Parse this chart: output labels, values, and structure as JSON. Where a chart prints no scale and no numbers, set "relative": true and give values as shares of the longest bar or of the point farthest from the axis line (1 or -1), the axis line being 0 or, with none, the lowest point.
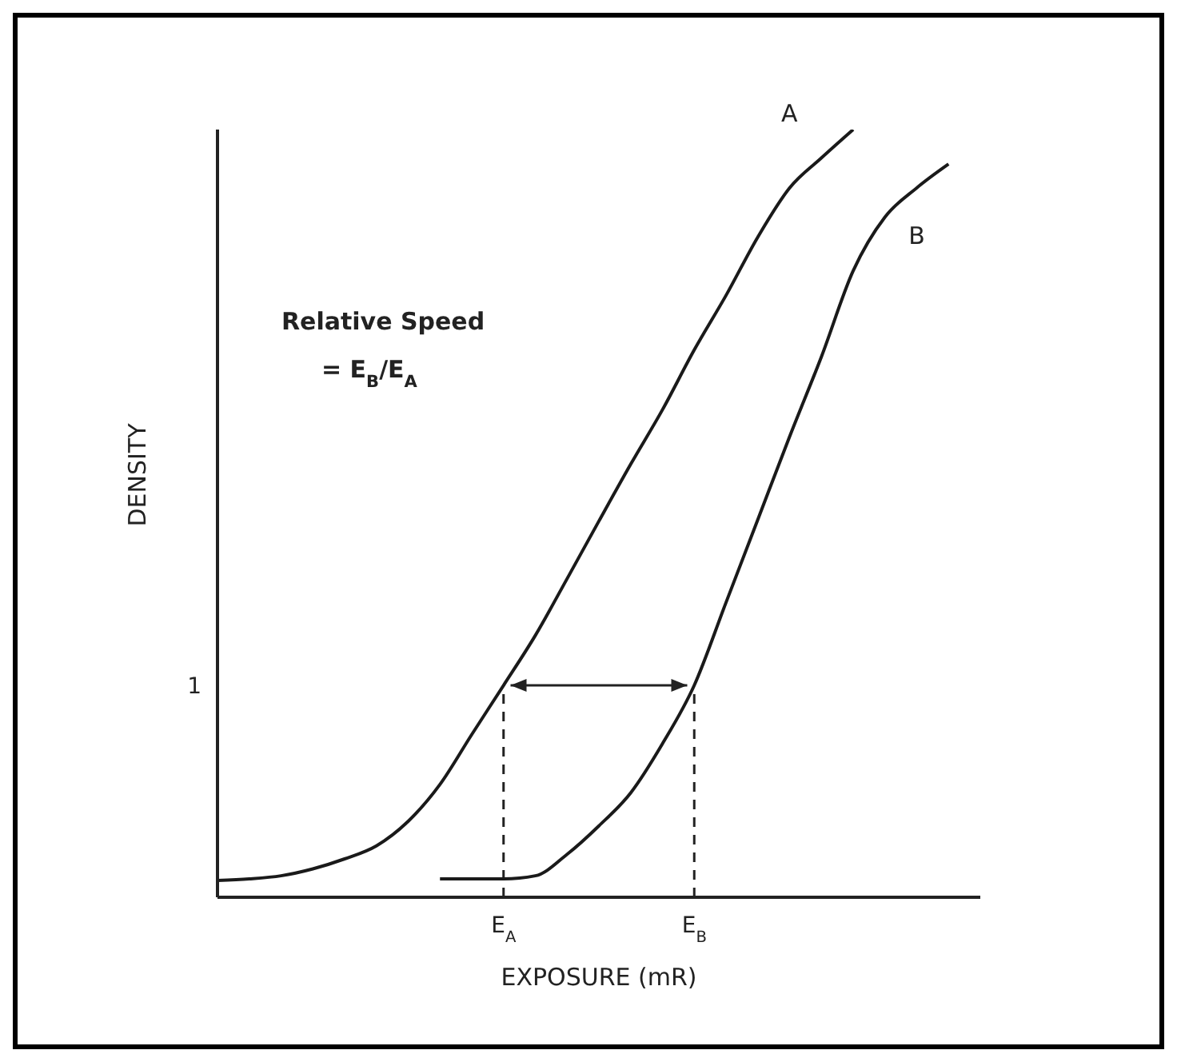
{
  "chart_data": {
    "type": "line",
    "relative": true,
    "xlabel": "EXPOSURE (mR)",
    "ylabel": "DENSITY",
    "categories": [
      null,
      null,
      null,
      null,
      null,
      null,
      null,
      null,
      null,
      "E$_{A}$",
      null,
      null,
      null,
      null,
      null,
      "E$_{B}$",
      null,
      null,
      null,
      null,
      null,
      null,
      null,
      null,
      null
    ],
    "series": [
      {
        "name": "A",
        "color": "#1a1a1a",
        "values": [
          0.022,
          0.024,
          0.028,
          0.037,
          0.05,
          0.067,
          0.099,
          0.147,
          0.212,
          0.276,
          0.341,
          0.415,
          0.49,
          0.564,
          0.635,
          0.713,
          0.784,
          0.86,
          0.924,
          0.963,
          1,
          null,
          null,
          null,
          null
        ]
      },
      {
        "name": "B",
        "color": "#1a1a1a",
        "values": [
          null,
          null,
          null,
          null,
          null,
          null,
          null,
          0.024,
          0.024,
          0.024,
          0.028,
          0.056,
          0.093,
          0.136,
          0.2,
          0.276,
          0.384,
          0.492,
          0.6,
          0.704,
          0.816,
          0.886,
          0.924,
          0.955,
          null
        ]
      }
    ],
    "ref_lines": [
      {
        "axis": "x",
        "value": "E$_{A}$",
        "line_style": "dashed"
      },
      {
        "axis": "x",
        "value": "E$_{B}$",
        "line_style": "dashed"
      }
    ],
    "annotations": [
      "Relative Speed",
      "= E$_{B}$/E$_{A}$",
      "1"
    ],
    "marker": "none",
    "line_style": "solid"
  }
}
